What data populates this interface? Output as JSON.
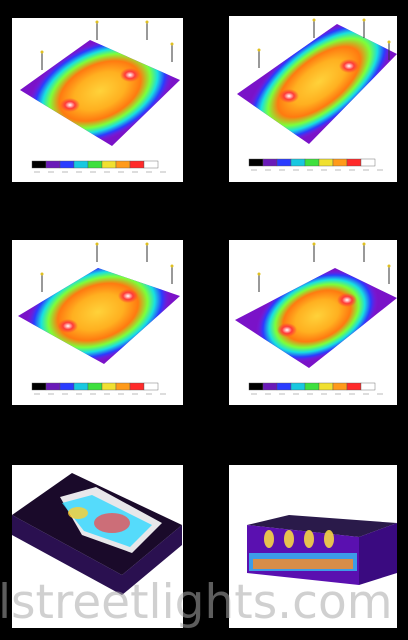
{
  "watermark": "lstreetlights.com"
}
